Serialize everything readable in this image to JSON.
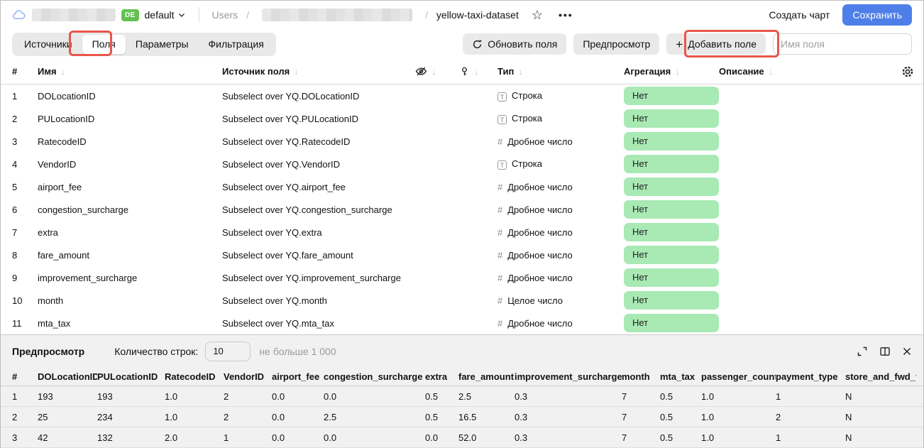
{
  "colors": {
    "accent_blue": "#4e7fe9",
    "badge_green": "#62c152",
    "aggregation_pill_green": "#a8e9b4",
    "annotation_red": "#e8564b"
  },
  "icons": {
    "star": "☆",
    "more_dots": "•••",
    "plus": "+",
    "sort_arrow": "↓"
  },
  "topbar": {
    "env_badge": "DE",
    "env_name": "default",
    "breadcrumb": {
      "root": "Users",
      "separator": "/",
      "current": "yellow-taxi-dataset"
    },
    "create_chart_label": "Создать чарт",
    "save_label": "Сохранить"
  },
  "toolbar": {
    "tabs": [
      {
        "label": "Источники",
        "active": false
      },
      {
        "label": "Поля",
        "active": true
      },
      {
        "label": "Параметры",
        "active": false
      },
      {
        "label": "Фильтрация",
        "active": false
      }
    ],
    "refresh_label": "Обновить поля",
    "preview_label": "Предпросмотр",
    "add_field_label": "Добавить поле",
    "field_name_placeholder": "Имя поля"
  },
  "fields_table": {
    "headers": {
      "num": "#",
      "name": "Имя",
      "source": "Источник поля",
      "type": "Тип",
      "aggregation": "Агрегация",
      "description": "Описание"
    },
    "rows": [
      {
        "num": "1",
        "name": "DOLocationID",
        "source": "Subselect over YQ.DOLocationID",
        "type_kind": "string",
        "type_label": "Строка",
        "aggregation": "Нет"
      },
      {
        "num": "2",
        "name": "PULocationID",
        "source": "Subselect over YQ.PULocationID",
        "type_kind": "string",
        "type_label": "Строка",
        "aggregation": "Нет"
      },
      {
        "num": "3",
        "name": "RatecodeID",
        "source": "Subselect over YQ.RatecodeID",
        "type_kind": "number",
        "type_label": "Дробное число",
        "aggregation": "Нет"
      },
      {
        "num": "4",
        "name": "VendorID",
        "source": "Subselect over YQ.VendorID",
        "type_kind": "string",
        "type_label": "Строка",
        "aggregation": "Нет"
      },
      {
        "num": "5",
        "name": "airport_fee",
        "source": "Subselect over YQ.airport_fee",
        "type_kind": "number",
        "type_label": "Дробное число",
        "aggregation": "Нет"
      },
      {
        "num": "6",
        "name": "congestion_surcharge",
        "source": "Subselect over YQ.congestion_surcharge",
        "type_kind": "number",
        "type_label": "Дробное число",
        "aggregation": "Нет"
      },
      {
        "num": "7",
        "name": "extra",
        "source": "Subselect over YQ.extra",
        "type_kind": "number",
        "type_label": "Дробное число",
        "aggregation": "Нет"
      },
      {
        "num": "8",
        "name": "fare_amount",
        "source": "Subselect over YQ.fare_amount",
        "type_kind": "number",
        "type_label": "Дробное число",
        "aggregation": "Нет"
      },
      {
        "num": "9",
        "name": "improvement_surcharge",
        "source": "Subselect over YQ.improvement_surcharge",
        "type_kind": "number",
        "type_label": "Дробное число",
        "aggregation": "Нет"
      },
      {
        "num": "10",
        "name": "month",
        "source": "Subselect over YQ.month",
        "type_kind": "number",
        "type_label": "Целое число",
        "aggregation": "Нет"
      },
      {
        "num": "11",
        "name": "mta_tax",
        "source": "Subselect over YQ.mta_tax",
        "type_kind": "number",
        "type_label": "Дробное число",
        "aggregation": "Нет"
      }
    ]
  },
  "preview": {
    "title": "Предпросмотр",
    "row_count_label": "Количество строк:",
    "row_count_value": "10",
    "row_count_hint": "не больше 1 000",
    "columns": [
      "#",
      "DOLocationID",
      "PULocationID",
      "RatecodeID",
      "VendorID",
      "airport_fee",
      "congestion_surcharge",
      "extra",
      "fare_amount",
      "improvement_surcharge",
      "month",
      "mta_tax",
      "passenger_count",
      "payment_type",
      "store_and_fwd_flag"
    ],
    "rows": [
      [
        "1",
        "193",
        "193",
        "1.0",
        "2",
        "0.0",
        "0.0",
        "0.5",
        "2.5",
        "0.3",
        "7",
        "0.5",
        "1.0",
        "1",
        "N"
      ],
      [
        "2",
        "25",
        "234",
        "1.0",
        "2",
        "0.0",
        "2.5",
        "0.5",
        "16.5",
        "0.3",
        "7",
        "0.5",
        "1.0",
        "2",
        "N"
      ],
      [
        "3",
        "42",
        "132",
        "2.0",
        "1",
        "0.0",
        "0.0",
        "0.0",
        "52.0",
        "0.3",
        "7",
        "0.5",
        "1.0",
        "1",
        "N"
      ]
    ]
  }
}
